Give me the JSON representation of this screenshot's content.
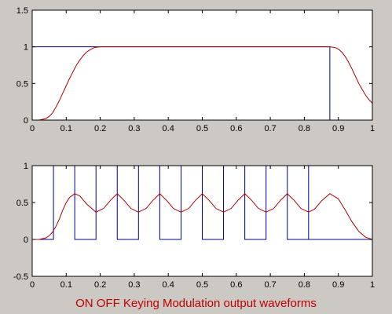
{
  "caption": "ON OFF Keying Modulation output waveforms",
  "caption_color": "#c00000",
  "chart_data": [
    {
      "type": "line",
      "xlim": [
        0,
        1
      ],
      "ylim": [
        0,
        1.5
      ],
      "x_ticks": [
        0,
        0.1,
        0.2,
        0.3,
        0.4,
        0.5,
        0.6,
        0.7,
        0.8,
        0.9,
        1
      ],
      "y_ticks": [
        0,
        0.5,
        1,
        1.5
      ],
      "x_tick_labels": [
        "0",
        "0.1",
        "0.2",
        "0.3",
        "0.4",
        "0.5",
        "0.6",
        "0.7",
        "0.8",
        "0.9",
        "1"
      ],
      "y_tick_labels": [
        "0",
        "0.5",
        "1",
        "1.5"
      ],
      "grid": false,
      "series": [
        {
          "color": "#00008b",
          "x": [
            0,
            0.875,
            0.875,
            1
          ],
          "y": [
            1,
            1,
            0,
            0
          ]
        },
        {
          "color": "#b00000",
          "x": [
            0,
            0.02,
            0.04,
            0.05,
            0.06,
            0.07,
            0.08,
            0.09,
            0.1,
            0.11,
            0.12,
            0.13,
            0.14,
            0.15,
            0.16,
            0.17,
            0.18,
            0.19,
            0.2,
            0.22,
            0.25,
            0.5,
            0.85,
            0.875,
            0.89,
            0.9,
            0.91,
            0.92,
            0.93,
            0.94,
            0.95,
            0.96,
            0.97,
            0.98,
            0.99,
            1
          ],
          "y": [
            0,
            0,
            0.02,
            0.05,
            0.1,
            0.18,
            0.27,
            0.37,
            0.47,
            0.57,
            0.66,
            0.75,
            0.82,
            0.88,
            0.93,
            0.96,
            0.985,
            0.995,
            1,
            1,
            1,
            1,
            1,
            1,
            0.99,
            0.97,
            0.93,
            0.87,
            0.79,
            0.7,
            0.6,
            0.5,
            0.42,
            0.34,
            0.28,
            0.23
          ]
        }
      ]
    },
    {
      "type": "line",
      "xlim": [
        0,
        1
      ],
      "ylim": [
        -0.5,
        1
      ],
      "x_ticks": [
        0,
        0.1,
        0.2,
        0.3,
        0.4,
        0.5,
        0.6,
        0.7,
        0.8,
        0.9,
        1
      ],
      "y_ticks": [
        -0.5,
        0,
        0.5,
        1
      ],
      "x_tick_labels": [
        "0",
        "0.1",
        "0.2",
        "0.3",
        "0.4",
        "0.5",
        "0.6",
        "0.7",
        "0.8",
        "0.9",
        "1"
      ],
      "y_tick_labels": [
        "-0.5",
        "0",
        "0.5",
        "1"
      ],
      "grid": false,
      "series": [
        {
          "color": "#00008b",
          "x": [
            0,
            0.0625,
            0.0625,
            0.125,
            0.125,
            0.1875,
            0.1875,
            0.25,
            0.25,
            0.3125,
            0.3125,
            0.375,
            0.375,
            0.4375,
            0.4375,
            0.5,
            0.5,
            0.5625,
            0.5625,
            0.625,
            0.625,
            0.6875,
            0.6875,
            0.75,
            0.75,
            0.8125,
            0.8125,
            0.8125,
            1
          ],
          "y": [
            0,
            0,
            1,
            1,
            0,
            0,
            1,
            1,
            0,
            0,
            1,
            1,
            0,
            0,
            1,
            1,
            0,
            0,
            1,
            1,
            0,
            0,
            1,
            1,
            0,
            0,
            1,
            0,
            0
          ]
        },
        {
          "color": "#b00000",
          "x": [
            0,
            0.02,
            0.04,
            0.05,
            0.06,
            0.07,
            0.08,
            0.09,
            0.1,
            0.11,
            0.125,
            0.14,
            0.16,
            0.1875,
            0.21,
            0.23,
            0.25,
            0.27,
            0.29,
            0.3125,
            0.335,
            0.355,
            0.375,
            0.395,
            0.415,
            0.4375,
            0.46,
            0.48,
            0.5,
            0.52,
            0.54,
            0.5625,
            0.585,
            0.605,
            0.625,
            0.645,
            0.665,
            0.6875,
            0.71,
            0.73,
            0.75,
            0.77,
            0.79,
            0.8125,
            0.83,
            0.85,
            0.875,
            0.9,
            0.92,
            0.94,
            0.96,
            0.98,
            1
          ],
          "y": [
            0,
            0,
            0.02,
            0.05,
            0.1,
            0.18,
            0.28,
            0.4,
            0.5,
            0.57,
            0.62,
            0.59,
            0.48,
            0.37,
            0.42,
            0.53,
            0.62,
            0.53,
            0.42,
            0.37,
            0.42,
            0.53,
            0.62,
            0.53,
            0.42,
            0.37,
            0.42,
            0.53,
            0.62,
            0.53,
            0.42,
            0.37,
            0.42,
            0.53,
            0.62,
            0.53,
            0.42,
            0.37,
            0.42,
            0.53,
            0.62,
            0.53,
            0.42,
            0.37,
            0.41,
            0.52,
            0.62,
            0.55,
            0.4,
            0.24,
            0.11,
            0.03,
            0
          ]
        }
      ]
    }
  ]
}
